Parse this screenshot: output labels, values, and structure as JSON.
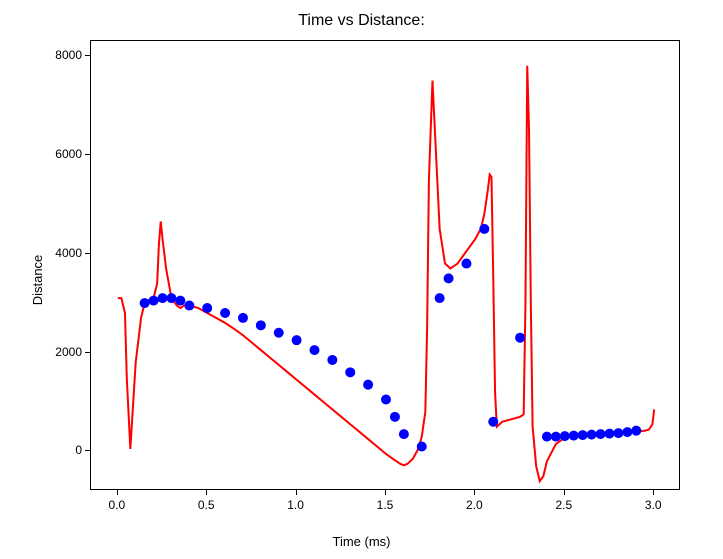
{
  "chart": {
    "type": "line+scatter",
    "title": "Time vs Distance:",
    "title_fontsize": 16,
    "xlabel": "Time (ms)",
    "ylabel": "Distance",
    "label_fontsize": 13,
    "tick_fontsize": 12,
    "xlim": [
      -0.15,
      3.15
    ],
    "ylim": [
      -800,
      8300
    ],
    "xticks": [
      0.0,
      0.5,
      1.0,
      1.5,
      2.0,
      2.5,
      3.0
    ],
    "yticks": [
      0,
      2000,
      4000,
      6000,
      8000
    ],
    "xtick_labels": [
      "0.0",
      "0.5",
      "1.0",
      "1.5",
      "2.0",
      "2.5",
      "3.0"
    ],
    "ytick_labels": [
      "0",
      "2000",
      "4000",
      "6000",
      "8000"
    ],
    "background_color": "#ffffff",
    "axis_color": "#000000",
    "text_color": "#000000",
    "line_series": {
      "color": "#ff0000",
      "width": 2,
      "x": [
        0.0,
        0.02,
        0.04,
        0.05,
        0.07,
        0.1,
        0.13,
        0.15,
        0.18,
        0.2,
        0.22,
        0.23,
        0.24,
        0.25,
        0.27,
        0.3,
        0.33,
        0.35,
        0.37,
        0.4,
        0.45,
        0.5,
        0.55,
        0.6,
        0.65,
        0.7,
        0.75,
        0.8,
        0.85,
        0.9,
        0.95,
        1.0,
        1.05,
        1.1,
        1.15,
        1.2,
        1.25,
        1.3,
        1.35,
        1.4,
        1.45,
        1.5,
        1.55,
        1.58,
        1.6,
        1.62,
        1.65,
        1.68,
        1.7,
        1.72,
        1.73,
        1.74,
        1.76,
        1.78,
        1.8,
        1.83,
        1.86,
        1.9,
        1.93,
        1.96,
        2.0,
        2.03,
        2.05,
        2.07,
        2.08,
        2.09,
        2.1,
        2.11,
        2.12,
        2.15,
        2.2,
        2.25,
        2.27,
        2.28,
        2.29,
        2.3,
        2.31,
        2.32,
        2.34,
        2.36,
        2.38,
        2.4,
        2.45,
        2.5,
        2.55,
        2.6,
        2.65,
        2.7,
        2.75,
        2.8,
        2.85,
        2.9,
        2.95,
        2.97,
        2.99,
        3.0
      ],
      "y": [
        3100,
        3100,
        2800,
        1500,
        50,
        1800,
        2700,
        3000,
        3080,
        3100,
        3400,
        4200,
        4650,
        4300,
        3700,
        3100,
        2950,
        2900,
        2950,
        2950,
        2900,
        2800,
        2700,
        2600,
        2480,
        2350,
        2200,
        2050,
        1900,
        1750,
        1600,
        1450,
        1300,
        1150,
        1000,
        850,
        700,
        550,
        400,
        250,
        100,
        -50,
        -180,
        -250,
        -280,
        -250,
        -150,
        50,
        300,
        800,
        2500,
        5500,
        7500,
        6000,
        4500,
        3800,
        3700,
        3800,
        3950,
        4100,
        4300,
        4500,
        4800,
        5300,
        5600,
        5550,
        3500,
        1200,
        500,
        600,
        650,
        700,
        750,
        3000,
        7800,
        6500,
        3000,
        500,
        -300,
        -600,
        -500,
        -200,
        150,
        280,
        300,
        310,
        320,
        330,
        340,
        360,
        380,
        400,
        420,
        440,
        550,
        850
      ]
    },
    "scatter_series": {
      "color": "#0000ff",
      "marker": "circle",
      "marker_size": 5,
      "x": [
        0.15,
        0.2,
        0.25,
        0.3,
        0.35,
        0.4,
        0.5,
        0.6,
        0.7,
        0.8,
        0.9,
        1.0,
        1.1,
        1.2,
        1.3,
        1.4,
        1.5,
        1.55,
        1.6,
        1.7,
        1.8,
        1.85,
        1.95,
        2.05,
        2.1,
        2.25,
        2.4,
        2.45,
        2.5,
        2.55,
        2.6,
        2.65,
        2.7,
        2.75,
        2.8,
        2.85,
        2.9
      ],
      "y": [
        3000,
        3050,
        3100,
        3100,
        3050,
        2950,
        2900,
        2800,
        2700,
        2550,
        2400,
        2250,
        2050,
        1850,
        1600,
        1350,
        1050,
        700,
        350,
        100,
        3100,
        3500,
        3800,
        4500,
        600,
        2300,
        300,
        300,
        310,
        320,
        330,
        340,
        350,
        360,
        370,
        390,
        420
      ]
    }
  }
}
